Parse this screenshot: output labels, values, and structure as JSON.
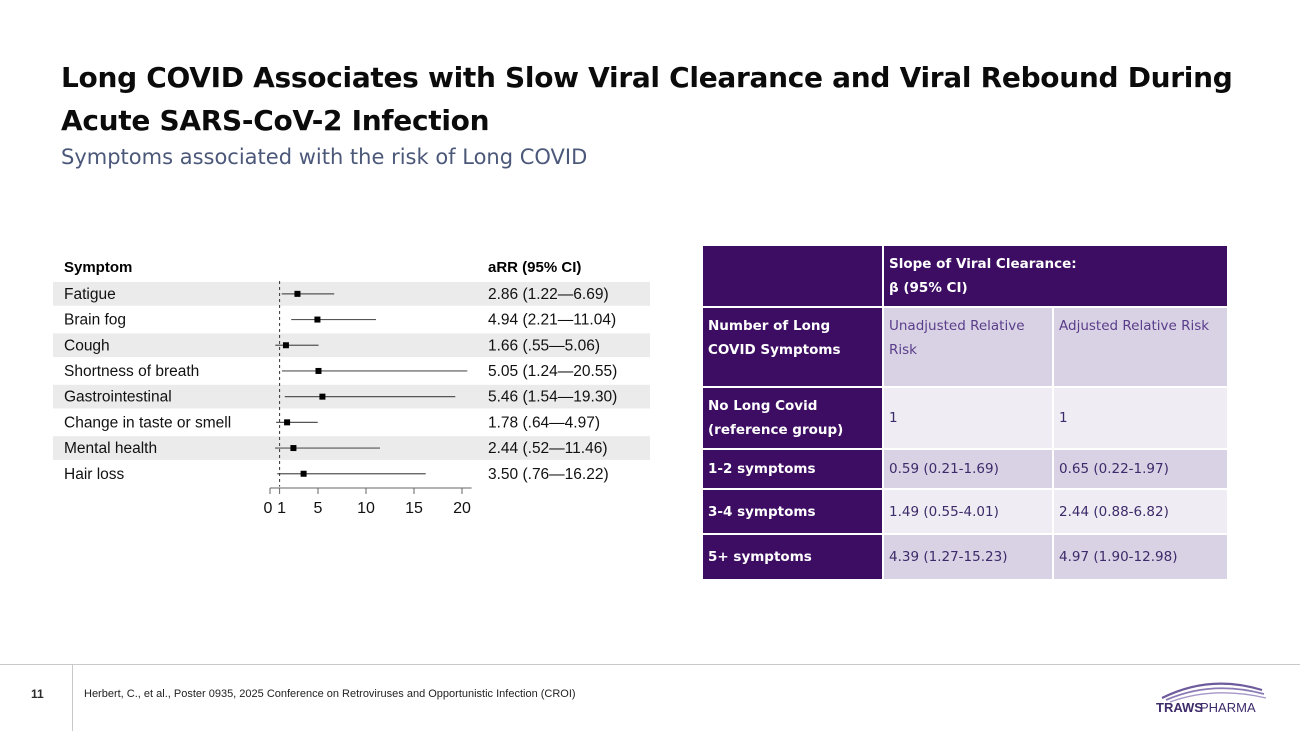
{
  "title": "Long COVID Associates with Slow Viral Clearance and Viral Rebound During Acute SARS-CoV-2 Infection",
  "subtitle": "Symptoms associated with the risk of Long COVID",
  "chart_data": {
    "type": "forest",
    "column_headers": {
      "symptom": "Symptom",
      "estimate": "aRR (95% CI)"
    },
    "rows": [
      {
        "symptom": "Fatigue",
        "arr": 2.86,
        "low": 1.22,
        "high": 6.69,
        "label": "2.86 (1.22—6.69)"
      },
      {
        "symptom": "Brain fog",
        "arr": 4.94,
        "low": 2.21,
        "high": 11.04,
        "label": "4.94 (2.21—11.04)"
      },
      {
        "symptom": "Cough",
        "arr": 1.66,
        "low": 0.55,
        "high": 5.06,
        "label": "1.66 (.55—5.06)"
      },
      {
        "symptom": "Shortness of breath",
        "arr": 5.05,
        "low": 1.24,
        "high": 20.55,
        "label": "5.05 (1.24—20.55)"
      },
      {
        "symptom": "Gastrointestinal",
        "arr": 5.46,
        "low": 1.54,
        "high": 19.3,
        "label": "5.46 (1.54—19.30)"
      },
      {
        "symptom": "Change in taste or smell",
        "arr": 1.78,
        "low": 0.64,
        "high": 4.97,
        "label": "1.78 (.64—4.97)"
      },
      {
        "symptom": "Mental health",
        "arr": 2.44,
        "low": 0.52,
        "high": 11.46,
        "label": "2.44 (.52—11.46)"
      },
      {
        "symptom": "Hair loss",
        "arr": 3.5,
        "low": 0.76,
        "high": 16.22,
        "label": "3.50 (.76—16.22)"
      }
    ],
    "x_ticks": [
      0,
      1,
      5,
      10,
      15,
      20
    ],
    "x_tick_labels": [
      "0",
      "1",
      "5",
      "10",
      "15",
      "20"
    ],
    "xlim": [
      0,
      21
    ],
    "reference_line": 1
  },
  "table": {
    "header": "Slope of Viral Clearance:",
    "header_sub": "β (95% CI)",
    "row_label_header": "Number of Long COVID Symptoms",
    "col_unadjusted": "Unadjusted Relative Risk",
    "col_adjusted": "Adjusted Relative Risk",
    "rows": [
      {
        "label": "No Long Covid (reference group)",
        "unadjusted": "1",
        "adjusted": "1"
      },
      {
        "label": "1-2 symptoms",
        "unadjusted": "0.59 (0.21-1.69)",
        "adjusted": "0.65 (0.22-1.97)"
      },
      {
        "label": "3-4 symptoms",
        "unadjusted": "1.49 (0.55-4.01)",
        "adjusted": "2.44 (0.88-6.82)"
      },
      {
        "label": "5+ symptoms",
        "unadjusted": "4.39 (1.27-15.23)",
        "adjusted": "4.97 (1.90-12.98)"
      }
    ]
  },
  "footer": {
    "page_number": "11",
    "citation": "Herbert, C., et al., Poster 0935, 2025 Conference on Retroviruses and Opportunistic Infection (CROI)",
    "logo_text_1": "TRAWS",
    "logo_text_2": "PHARMA"
  },
  "colors": {
    "table_dark": "#3d0d63",
    "table_light": "#d9d2e4",
    "subtitle": "#4b587a"
  }
}
